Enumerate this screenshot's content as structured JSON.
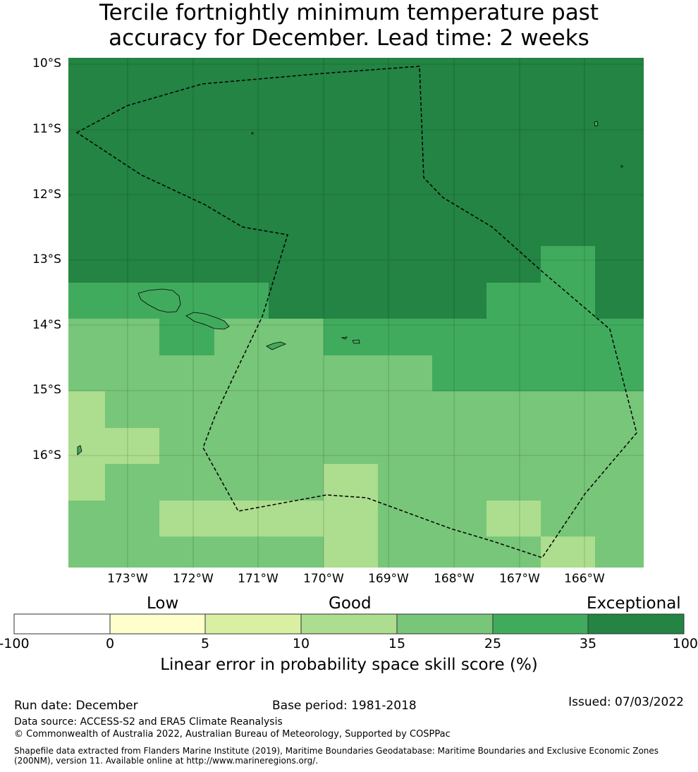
{
  "title": {
    "line1": "Tercile fortnightly minimum temperature past",
    "line2": "accuracy for December. Lead time: 2 weeks"
  },
  "map": {
    "lat_labels": [
      "10°S",
      "11°S",
      "12°S",
      "13°S",
      "14°S",
      "15°S",
      "16°S"
    ],
    "lon_labels": [
      "173°W",
      "172°W",
      "171°W",
      "170°W",
      "169°W",
      "168°W",
      "167°W",
      "166°W"
    ],
    "category_colors": {
      "exceptional": "#238443",
      "very_good": "#41ab5d",
      "good": "#78c679",
      "moderate": "#addd8e"
    }
  },
  "colorbar": {
    "categories": [
      "Low",
      "Good",
      "Exceptional"
    ],
    "ticks": [
      "-100",
      "0",
      "5",
      "10",
      "15",
      "25",
      "35",
      "100"
    ],
    "colors": [
      "#ffffff",
      "#ffffcc",
      "#d9f0a3",
      "#addd8e",
      "#78c679",
      "#41ab5d",
      "#238443"
    ],
    "label": "Linear error in probability space skill score (%)"
  },
  "footer": {
    "run_date": "Run date: December",
    "base_period": "Base period: 1981-2018",
    "issued": "Issued: 07/03/2022",
    "data_source": "Data source: ACCESS-S2 and ERA5 Climate Reanalysis",
    "copyright": "© Commonwealth of Australia 2022, Australian Bureau of Meteorology, Supported by COSPPac",
    "shapefile": "Shapefile data extracted from Flanders Marine Institute (2019), Maritime Boundaries Geodatabase: Maritime Boundaries and Exclusive Economic Zones (200NM), version 11. Available online at http://www.marineregions.org/."
  }
}
